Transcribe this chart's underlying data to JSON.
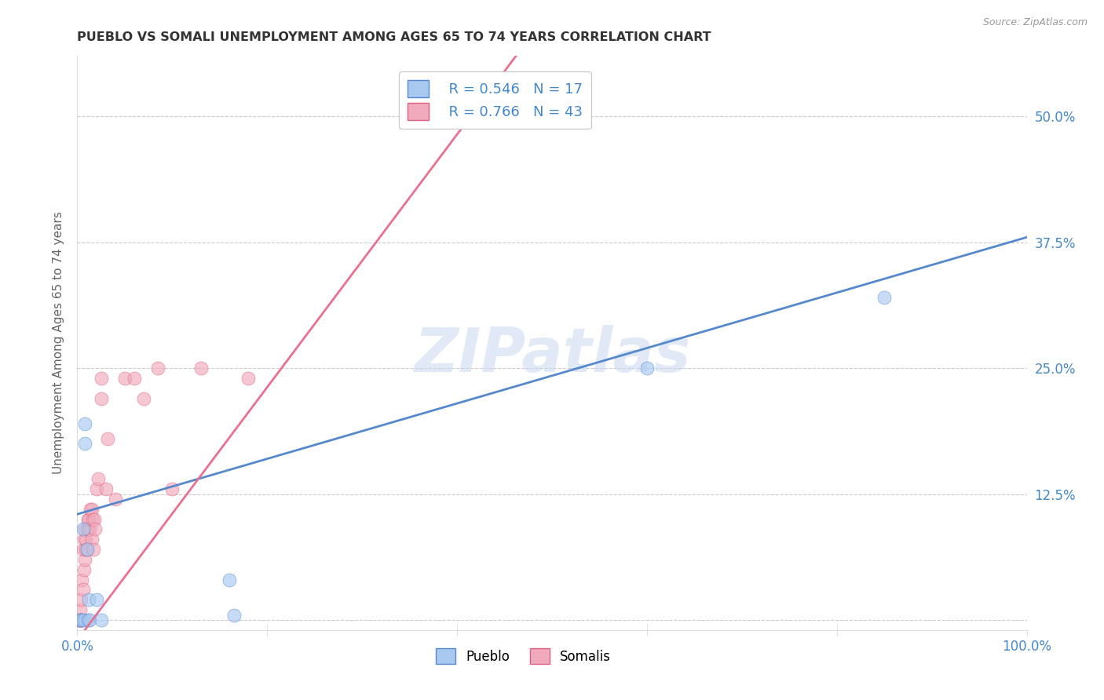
{
  "title": "PUEBLO VS SOMALI UNEMPLOYMENT AMONG AGES 65 TO 74 YEARS CORRELATION CHART",
  "source": "Source: ZipAtlas.com",
  "ylabel": "Unemployment Among Ages 65 to 74 years",
  "xlim": [
    0,
    1.0
  ],
  "ylim": [
    -0.01,
    0.56
  ],
  "xticks": [
    0.0,
    0.2,
    0.4,
    0.6,
    0.8,
    1.0
  ],
  "xticklabels": [
    "0.0%",
    "",
    "",
    "",
    "",
    "100.0%"
  ],
  "ytick_positions": [
    0.0,
    0.125,
    0.25,
    0.375,
    0.5
  ],
  "yticklabels": [
    "",
    "12.5%",
    "25.0%",
    "37.5%",
    "50.0%"
  ],
  "pueblo_color": "#A8C8F0",
  "somali_color": "#F0AABB",
  "pueblo_edge_color": "#5588CC",
  "somali_edge_color": "#E06080",
  "pueblo_line_color": "#5588CC",
  "somali_line_color": "#E87090",
  "tick_color": "#4488CC",
  "pueblo_R": 0.546,
  "pueblo_N": 17,
  "somali_R": 0.766,
  "somali_N": 43,
  "watermark": "ZIPatlas",
  "pueblo_scatter_x": [
    0.003,
    0.004,
    0.005,
    0.006,
    0.007,
    0.008,
    0.008,
    0.01,
    0.011,
    0.012,
    0.013,
    0.02,
    0.025,
    0.16,
    0.165,
    0.6,
    0.85
  ],
  "pueblo_scatter_y": [
    0.0,
    0.0,
    0.0,
    0.09,
    0.0,
    0.175,
    0.195,
    0.07,
    0.0,
    0.02,
    0.0,
    0.02,
    0.0,
    0.04,
    0.005,
    0.25,
    0.32
  ],
  "somali_scatter_x": [
    0.001,
    0.002,
    0.003,
    0.003,
    0.004,
    0.004,
    0.005,
    0.005,
    0.006,
    0.006,
    0.007,
    0.007,
    0.008,
    0.008,
    0.009,
    0.009,
    0.01,
    0.01,
    0.011,
    0.012,
    0.012,
    0.013,
    0.014,
    0.015,
    0.015,
    0.016,
    0.017,
    0.018,
    0.019,
    0.02,
    0.022,
    0.025,
    0.025,
    0.03,
    0.032,
    0.04,
    0.05,
    0.06,
    0.07,
    0.085,
    0.1,
    0.13,
    0.18
  ],
  "somali_scatter_y": [
    0.0,
    0.0,
    0.0,
    0.01,
    0.0,
    0.02,
    0.0,
    0.04,
    0.03,
    0.07,
    0.05,
    0.08,
    0.06,
    0.09,
    0.07,
    0.08,
    0.07,
    0.09,
    0.1,
    0.09,
    0.1,
    0.09,
    0.11,
    0.08,
    0.11,
    0.1,
    0.07,
    0.1,
    0.09,
    0.13,
    0.14,
    0.24,
    0.22,
    0.13,
    0.18,
    0.12,
    0.24,
    0.24,
    0.22,
    0.25,
    0.13,
    0.25,
    0.24
  ],
  "pueblo_line_x": [
    0.0,
    1.0
  ],
  "pueblo_line_y": [
    0.105,
    0.38
  ],
  "somali_line_x": [
    0.0,
    0.47
  ],
  "somali_line_y": [
    -0.02,
    0.57
  ],
  "background_color": "#ffffff",
  "grid_color": "#cccccc",
  "spine_color": "#dddddd"
}
